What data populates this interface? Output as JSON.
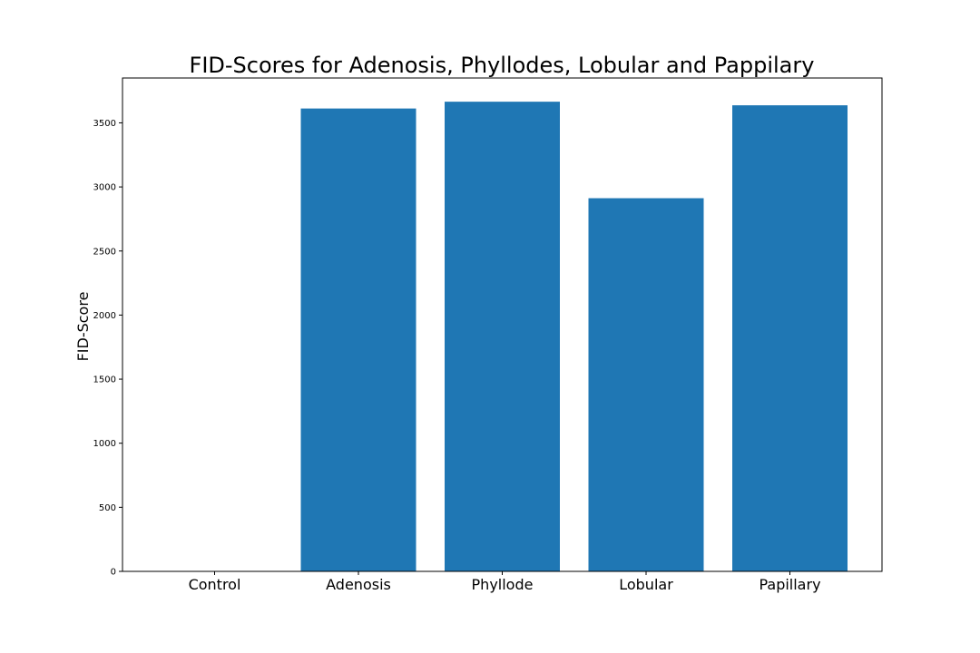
{
  "chart_data": {
    "type": "bar",
    "title": "FID-Scores for Adenosis, Phyllodes, Lobular and Pappilary",
    "xlabel": "",
    "ylabel": "FID-Score",
    "categories": [
      "Control",
      "Adenosis",
      "Phyllode",
      "Lobular",
      "Papillary"
    ],
    "values": [
      0,
      3612,
      3665,
      2912,
      3637
    ],
    "ylim": [
      0,
      3850
    ],
    "yticks": [
      0,
      500,
      1000,
      1500,
      2000,
      2500,
      3000,
      3500
    ],
    "ytick_labels": [
      "0",
      "500",
      "1000",
      "1500",
      "2000",
      "2500",
      "3000",
      "3500"
    ],
    "grid": false,
    "bar_color": "#1f77b4"
  }
}
